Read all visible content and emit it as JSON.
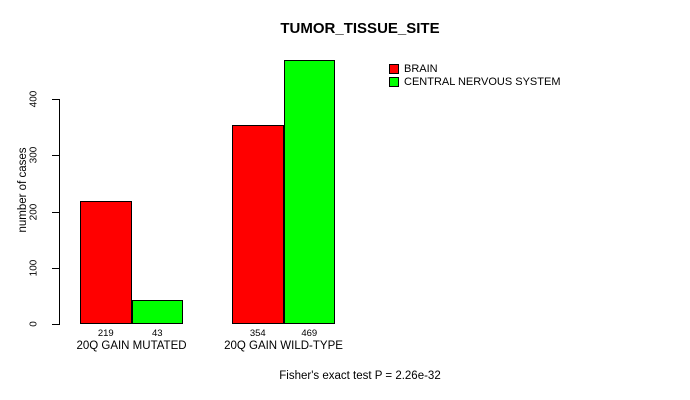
{
  "chart_data": {
    "type": "bar",
    "title": "TUMOR_TISSUE_SITE",
    "xlabel": "",
    "ylabel": "number of cases",
    "categories": [
      "20Q GAIN MUTATED",
      "20Q GAIN WILD-TYPE"
    ],
    "series": [
      {
        "name": "BRAIN",
        "color": "#FF0000",
        "values": [
          219,
          354
        ]
      },
      {
        "name": "CENTRAL NERVOUS SYSTEM",
        "color": "#00FF00",
        "values": [
          43,
          469
        ]
      }
    ],
    "yticks": [
      0,
      100,
      200,
      300,
      400
    ],
    "ylim": [
      0,
      475
    ],
    "grid": false,
    "bar_borders": "#000000",
    "background": "#FFFFFF",
    "legend_position": "top-right",
    "value_labels_shown": true,
    "footer": "Fisher's exact test P = 2.26e-32"
  }
}
